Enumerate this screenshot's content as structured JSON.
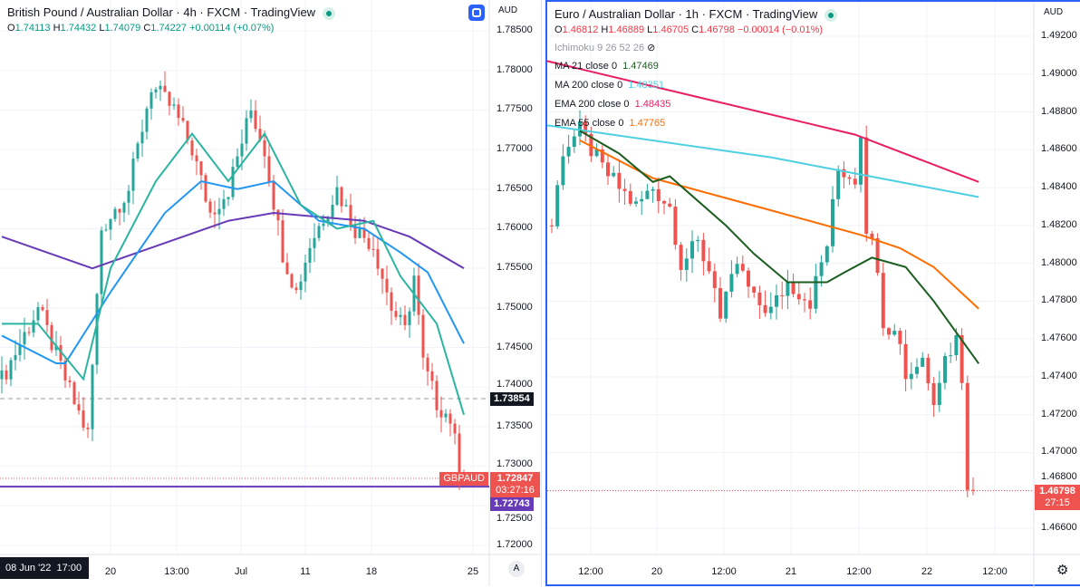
{
  "left": {
    "title": "British Pound / Australian Dollar · 4h · FXCM · TradingView",
    "ohlc": {
      "o_label": "O",
      "o": "1.74113",
      "h_label": "H",
      "h": "1.74432",
      "l_label": "L",
      "l": "1.74079",
      "c_label": "C",
      "c": "1.74227",
      "change": "+0.00114 (+0.07%)"
    },
    "currency": "AUD",
    "price_ticks": [
      "1.78500",
      "1.78000",
      "1.77500",
      "1.77000",
      "1.76500",
      "1.76000",
      "1.75500",
      "1.75000",
      "1.74500",
      "1.74000",
      "1.73500",
      "1.73000",
      "1.72500",
      "1.72000"
    ],
    "price_range": [
      1.72,
      1.785
    ],
    "time_labels": [
      "08 Jun '22  17:00",
      "20",
      "13:00",
      "Jul",
      "11",
      "18",
      "25"
    ],
    "crosshair_price": "1.73854",
    "symbol_tag": "GBPAUD",
    "last_price": "1.72847",
    "countdown": "03:27:16",
    "line_price": "1.72743",
    "auto_button": "A",
    "colors": {
      "up": "#26a69a",
      "down": "#ef5350",
      "ma_purple": "#673ab7",
      "ma_blue": "#2196f3",
      "ma_teal": "#2bb5a0"
    },
    "close_anchors": [
      [
        0,
        1.741
      ],
      [
        8,
        1.75
      ],
      [
        16,
        1.738
      ],
      [
        19,
        1.734
      ],
      [
        22,
        1.76
      ],
      [
        28,
        1.765
      ],
      [
        33,
        1.778
      ],
      [
        38,
        1.775
      ],
      [
        42,
        1.77
      ],
      [
        46,
        1.762
      ],
      [
        50,
        1.765
      ],
      [
        55,
        1.775
      ],
      [
        58,
        1.77
      ],
      [
        62,
        1.757
      ],
      [
        65,
        1.752
      ],
      [
        68,
        1.758
      ],
      [
        74,
        1.765
      ],
      [
        78,
        1.76
      ],
      [
        82,
        1.758
      ],
      [
        86,
        1.75
      ],
      [
        89,
        1.747
      ],
      [
        91,
        1.754
      ],
      [
        93,
        1.743
      ],
      [
        96,
        1.738
      ],
      [
        99,
        1.736
      ],
      [
        101,
        1.73
      ],
      [
        102,
        1.7285
      ]
    ],
    "lines": [
      {
        "name": "purple",
        "color": "#673ab7",
        "points": [
          [
            0,
            1.759
          ],
          [
            20,
            1.755
          ],
          [
            30,
            1.757
          ],
          [
            50,
            1.761
          ],
          [
            60,
            1.762
          ],
          [
            80,
            1.761
          ],
          [
            90,
            1.759
          ],
          [
            102,
            1.755
          ]
        ]
      },
      {
        "name": "blue",
        "color": "#2196f3",
        "points": [
          [
            0,
            1.7465
          ],
          [
            12,
            1.743
          ],
          [
            14,
            1.743
          ],
          [
            24,
            1.752
          ],
          [
            36,
            1.762
          ],
          [
            44,
            1.766
          ],
          [
            52,
            1.765
          ],
          [
            60,
            1.766
          ],
          [
            70,
            1.761
          ],
          [
            80,
            1.76
          ],
          [
            88,
            1.757
          ],
          [
            94,
            1.7545
          ],
          [
            102,
            1.7455
          ]
        ]
      },
      {
        "name": "teal",
        "color": "#2bb5a0",
        "points": [
          [
            0,
            1.748
          ],
          [
            8,
            1.748
          ],
          [
            18,
            1.741
          ],
          [
            24,
            1.755
          ],
          [
            34,
            1.766
          ],
          [
            42,
            1.772
          ],
          [
            50,
            1.766
          ],
          [
            58,
            1.772
          ],
          [
            66,
            1.763
          ],
          [
            74,
            1.76
          ],
          [
            82,
            1.761
          ],
          [
            88,
            1.754
          ],
          [
            96,
            1.748
          ],
          [
            102,
            1.7365
          ]
        ]
      }
    ]
  },
  "right": {
    "title": "Euro / Australian Dollar · 1h · FXCM · TradingView",
    "ohlc": {
      "o_label": "O",
      "o": "1.46812",
      "h_label": "H",
      "h": "1.46889",
      "l_label": "L",
      "l": "1.46705",
      "c_label": "C",
      "c": "1.46798",
      "change": "−0.00014 (−0.01%)"
    },
    "indicators": [
      {
        "label": "Ichimoku 9 26 52 26",
        "value": "",
        "color": "#9598a1"
      },
      {
        "label": "MA 21 close 0",
        "value": "1.47469",
        "color": "#1b5e20"
      },
      {
        "label": "MA 200 close 0",
        "value": "1.48351",
        "color": "#4dd0e1"
      },
      {
        "label": "EMA 200 close 0",
        "value": "1.48435",
        "color": "#e91e63"
      },
      {
        "label": "EMA 55 close 0",
        "value": "1.47765",
        "color": "#ff6d00"
      }
    ],
    "currency": "AUD",
    "price_ticks": [
      "1.49200",
      "1.49000",
      "1.48800",
      "1.48600",
      "1.48400",
      "1.48200",
      "1.48000",
      "1.47800",
      "1.47600",
      "1.47400",
      "1.47200",
      "1.47000",
      "1.46800",
      "1.46600"
    ],
    "price_range": [
      1.466,
      1.492
    ],
    "time_labels": [
      "12:00",
      "20",
      "12:00",
      "21",
      "12:00",
      "22",
      "12:00"
    ],
    "last_price": "1.46798",
    "countdown": "27:15",
    "colors": {
      "up": "#26a69a",
      "down": "#ef5350"
    },
    "close_anchors": [
      [
        0,
        1.482
      ],
      [
        2,
        1.486
      ],
      [
        5,
        1.487
      ],
      [
        9,
        1.485
      ],
      [
        12,
        1.484
      ],
      [
        15,
        1.483
      ],
      [
        18,
        1.484
      ],
      [
        21,
        1.483
      ],
      [
        23,
        1.48
      ],
      [
        26,
        1.481
      ],
      [
        29,
        1.479
      ],
      [
        30,
        1.477
      ],
      [
        33,
        1.48
      ],
      [
        36,
        1.478
      ],
      [
        39,
        1.4775
      ],
      [
        42,
        1.479
      ],
      [
        46,
        1.478
      ],
      [
        49,
        1.481
      ],
      [
        51,
        1.485
      ],
      [
        54,
        1.4845
      ],
      [
        55,
        1.487
      ],
      [
        56,
        1.482
      ],
      [
        58,
        1.48
      ],
      [
        59,
        1.477
      ],
      [
        62,
        1.476
      ],
      [
        63,
        1.474
      ],
      [
        66,
        1.475
      ],
      [
        68,
        1.473
      ],
      [
        70,
        1.475
      ],
      [
        72,
        1.476
      ],
      [
        73,
        1.474
      ],
      [
        74,
        1.4685
      ],
      [
        75,
        1.468
      ]
    ],
    "lines": [
      {
        "name": "EMA 200",
        "color": "#e91e63",
        "points": [
          [
            -1,
            1.4907
          ],
          [
            54,
            1.4868
          ],
          [
            76,
            1.4843
          ]
        ]
      },
      {
        "name": "MA 200",
        "color": "#4dd0e1",
        "points": [
          [
            -1,
            1.4873
          ],
          [
            39,
            1.4856
          ],
          [
            76,
            1.4835
          ]
        ]
      },
      {
        "name": "EMA 55",
        "color": "#ff6d00",
        "points": [
          [
            5,
            1.4865
          ],
          [
            18,
            1.4845
          ],
          [
            39,
            1.4828
          ],
          [
            55,
            1.4815
          ],
          [
            62,
            1.4808
          ],
          [
            68,
            1.4798
          ],
          [
            76,
            1.4776
          ]
        ]
      },
      {
        "name": "MA 21",
        "color": "#1b5e20",
        "points": [
          [
            5,
            1.487
          ],
          [
            12,
            1.4858
          ],
          [
            18,
            1.4843
          ],
          [
            21,
            1.4846
          ],
          [
            31,
            1.482
          ],
          [
            36,
            1.4805
          ],
          [
            42,
            1.479
          ],
          [
            49,
            1.479
          ],
          [
            52,
            1.4795
          ],
          [
            57,
            1.4803
          ],
          [
            63,
            1.4798
          ],
          [
            68,
            1.478
          ],
          [
            76,
            1.4747
          ]
        ]
      }
    ]
  }
}
